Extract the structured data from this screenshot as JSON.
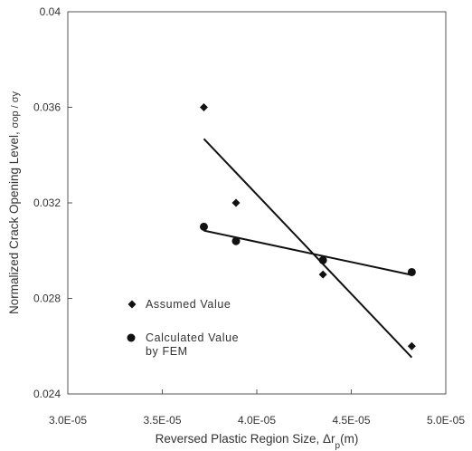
{
  "chart_data": {
    "type": "scatter",
    "xlabel": "Reversed Plastic Region Size, Δr",
    "xlabel_subscript": "p",
    "xlabel_unit": "(m)",
    "ylabel": "Normalized Crack Opening Level,",
    "ylabel_ratio": "σop / σy",
    "xlim": [
      3e-05,
      5e-05
    ],
    "ylim": [
      0.024,
      0.04
    ],
    "x_ticks": [
      3e-05,
      3.5e-05,
      4e-05,
      4.5e-05,
      5e-05
    ],
    "x_tick_labels": [
      "3.0E-05",
      "3.5E-05",
      "4.0E-05",
      "4.5E-05",
      "5.0E-05"
    ],
    "y_ticks": [
      0.024,
      0.028,
      0.032,
      0.036,
      0.04
    ],
    "y_tick_labels": [
      "0.024",
      "0.028",
      "0.032",
      "0.036",
      "0.04"
    ],
    "grid": false,
    "legend_position": "bottom-left",
    "series": [
      {
        "name": "Assumed Value",
        "marker": "diamond",
        "x": [
          3.72e-05,
          3.89e-05,
          4.35e-05,
          4.82e-05
        ],
        "y": [
          0.036,
          0.032,
          0.029,
          0.026
        ],
        "fit_line": {
          "x": [
            3.72e-05,
            4.82e-05
          ],
          "y": [
            0.03468,
            0.02553
          ]
        }
      },
      {
        "name": "Calculated Value\nby FEM",
        "name_lines": [
          "Calculated Value",
          "by FEM"
        ],
        "marker": "circle",
        "x": [
          3.72e-05,
          3.89e-05,
          4.35e-05,
          4.82e-05
        ],
        "y": [
          0.031,
          0.0304,
          0.0296,
          0.0291
        ],
        "fit_line": {
          "x": [
            3.72e-05,
            4.82e-05
          ],
          "y": [
            0.03084,
            0.02898
          ]
        }
      }
    ]
  }
}
